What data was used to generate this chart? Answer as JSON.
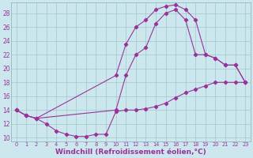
{
  "background_color": "#cce8ee",
  "plot_bg_color": "#cce8ee",
  "line_color": "#993399",
  "marker": "D",
  "marker_size": 2.2,
  "xlabel": "Windchill (Refroidissement éolien,°C)",
  "xlabel_fontsize": 6.5,
  "xlim": [
    -0.5,
    23.5
  ],
  "ylim": [
    9.5,
    29.5
  ],
  "xticks": [
    0,
    1,
    2,
    3,
    4,
    5,
    6,
    7,
    8,
    9,
    10,
    11,
    12,
    13,
    14,
    15,
    16,
    17,
    18,
    19,
    20,
    21,
    22,
    23
  ],
  "yticks": [
    10,
    12,
    14,
    16,
    18,
    20,
    22,
    24,
    26,
    28
  ],
  "series1_x": [
    0,
    1,
    2,
    3,
    4,
    5,
    6,
    7,
    8,
    9,
    10,
    11,
    12,
    13,
    14,
    15,
    16,
    17,
    18,
    19,
    20,
    21,
    22,
    23
  ],
  "series1_y": [
    14,
    13.2,
    12.8,
    12.0,
    11.0,
    10.5,
    10.2,
    10.2,
    10.5,
    10.5,
    13.8,
    14.0,
    14.0,
    14.2,
    14.5,
    15.0,
    15.8,
    16.5,
    17.0,
    17.5,
    18.0,
    18.0,
    18.0,
    18.0
  ],
  "series2_x": [
    0,
    1,
    2,
    10,
    11,
    12,
    13,
    14,
    15,
    16,
    17,
    18,
    19,
    20,
    21,
    22,
    23
  ],
  "series2_y": [
    14,
    13.2,
    12.8,
    19.0,
    23.5,
    26.0,
    27.0,
    28.5,
    29.0,
    29.2,
    28.5,
    27.0,
    22.0,
    21.5,
    20.5,
    20.5,
    18.0
  ],
  "series3_x": [
    0,
    1,
    2,
    10,
    11,
    12,
    13,
    14,
    15,
    16,
    17,
    18,
    19,
    20,
    21,
    22,
    23
  ],
  "series3_y": [
    14,
    13.2,
    12.8,
    14.0,
    19.0,
    22.0,
    23.0,
    26.5,
    28.0,
    28.5,
    27.0,
    22.0,
    22.0,
    21.5,
    20.5,
    20.5,
    18.0
  ]
}
